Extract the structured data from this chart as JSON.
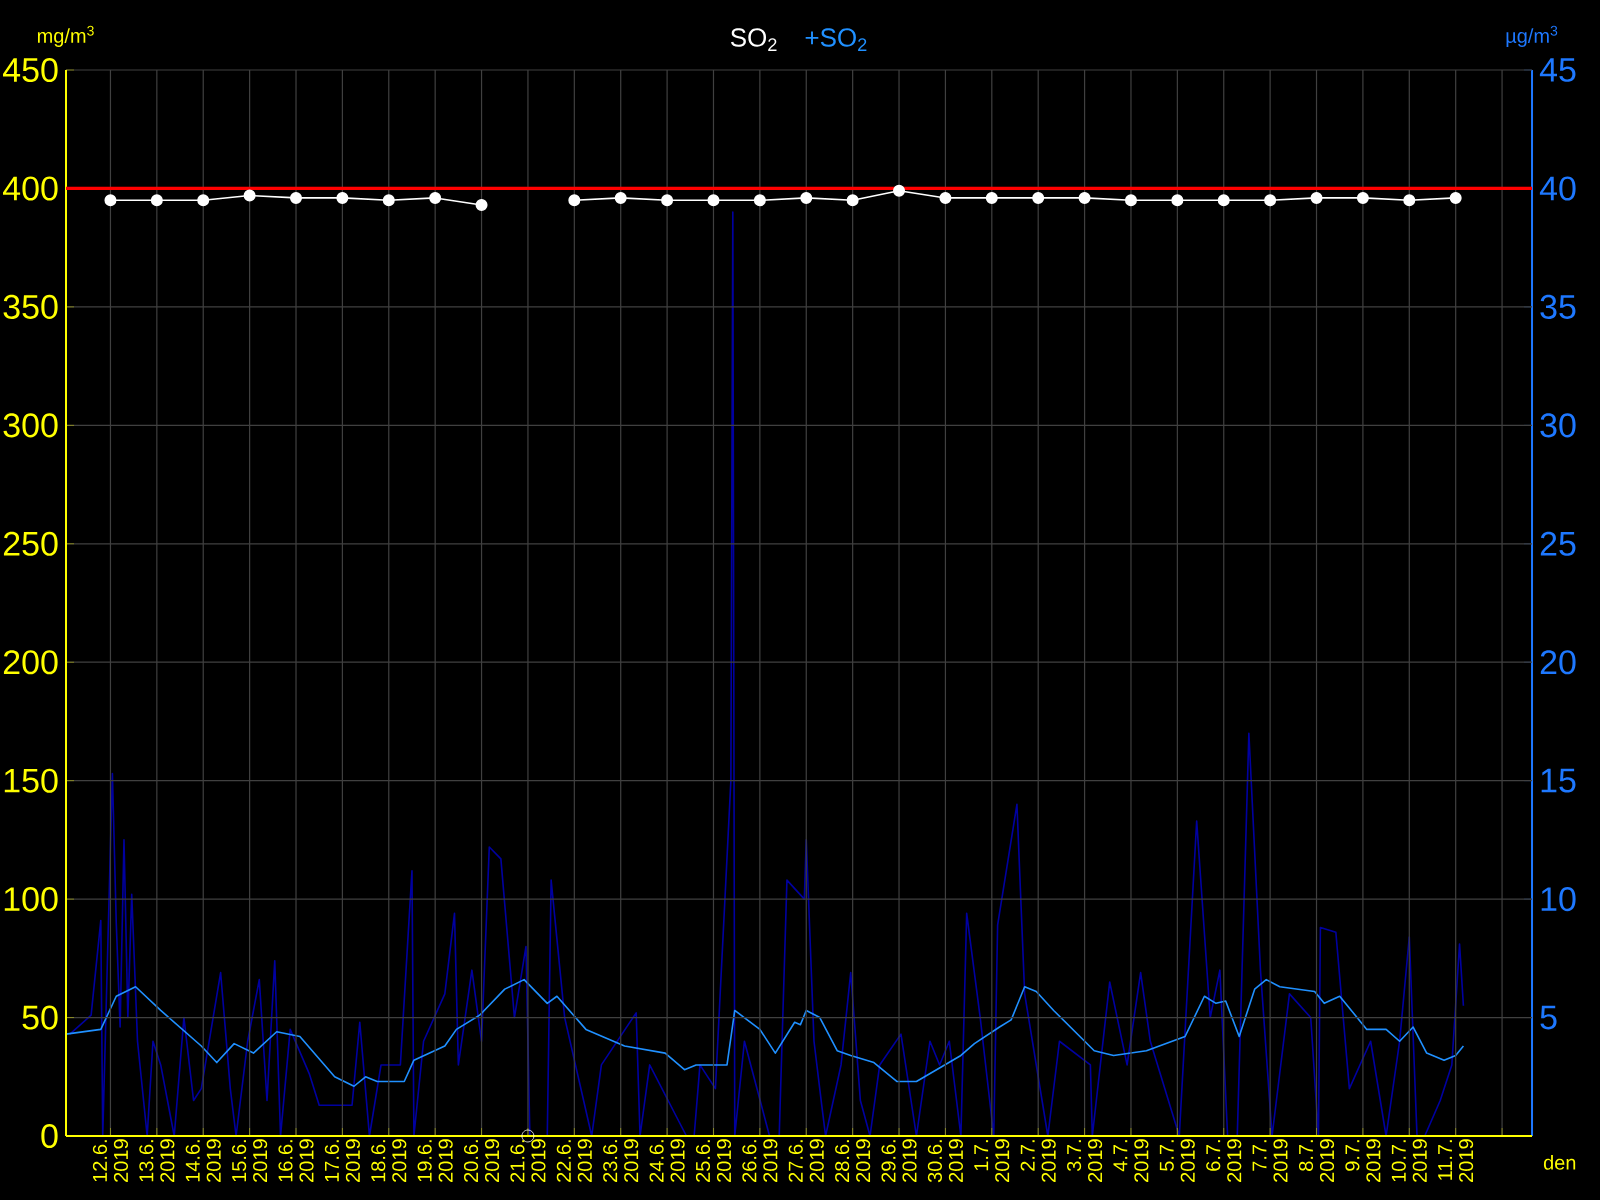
{
  "chart_data": {
    "type": "line",
    "xlabel": "den",
    "ylabel": "mg/m$^{3}$",
    "y2label": "µg/m$^{3}$",
    "legend": "top",
    "grid": true,
    "xlim": [
      "2019-06-11T01:00",
      "2019-07-12T15:30"
    ],
    "xticks": [
      {
        "value": "2019-06-12",
        "label": "12.6. 2019"
      },
      {
        "value": "2019-06-13",
        "label": "13.6. 2019"
      },
      {
        "value": "2019-06-14",
        "label": "14.6. 2019"
      },
      {
        "value": "2019-06-15",
        "label": "15.6. 2019"
      },
      {
        "value": "2019-06-16",
        "label": "16.6. 2019"
      },
      {
        "value": "2019-06-17",
        "label": "17.6. 2019"
      },
      {
        "value": "2019-06-18",
        "label": "18.6. 2019"
      },
      {
        "value": "2019-06-19",
        "label": "19.6. 2019"
      },
      {
        "value": "2019-06-20",
        "label": "20.6. 2019"
      },
      {
        "value": "2019-06-21",
        "label": "21.6. 2019"
      },
      {
        "value": "2019-06-22",
        "label": "22.6. 2019"
      },
      {
        "value": "2019-06-23",
        "label": "23.6. 2019"
      },
      {
        "value": "2019-06-24",
        "label": "24.6. 2019"
      },
      {
        "value": "2019-06-25",
        "label": "25.6. 2019"
      },
      {
        "value": "2019-06-26",
        "label": "26.6. 2019"
      },
      {
        "value": "2019-06-27",
        "label": "27.6. 2019"
      },
      {
        "value": "2019-06-28",
        "label": "28.6. 2019"
      },
      {
        "value": "2019-06-29",
        "label": "29.6. 2019"
      },
      {
        "value": "2019-06-30",
        "label": "30.6. 2019"
      },
      {
        "value": "2019-07-01",
        "label": "1.7. 2019"
      },
      {
        "value": "2019-07-02",
        "label": "2.7. 2019"
      },
      {
        "value": "2019-07-03",
        "label": "3.7. 2019"
      },
      {
        "value": "2019-07-04",
        "label": "4.7. 2019"
      },
      {
        "value": "2019-07-05",
        "label": "5.7. 2019"
      },
      {
        "value": "2019-07-06",
        "label": "6.7. 2019"
      },
      {
        "value": "2019-07-07",
        "label": "7.7. 2019"
      },
      {
        "value": "2019-07-08",
        "label": "8.7. 2019"
      },
      {
        "value": "2019-07-09",
        "label": "9.7. 2019"
      },
      {
        "value": "2019-07-10",
        "label": "10.7. 2019"
      },
      {
        "value": "2019-07-11",
        "label": "11.7. 2019"
      },
      {
        "value": "2019-07-12",
        "label": null
      }
    ],
    "ylim": [
      0,
      450
    ],
    "yticks": [
      0,
      50,
      100,
      150,
      200,
      250,
      300,
      350,
      400,
      450
    ],
    "y2lim": [
      0,
      45
    ],
    "y2ticks": [
      5,
      10,
      15,
      20,
      25,
      30,
      35,
      40,
      45
    ],
    "ref_lines": [
      {
        "axis": "y",
        "value": 400,
        "color": "#ff0000"
      }
    ],
    "series": [
      {
        "axis": "y2",
        "color": "#0000a0",
        "x": [
          "2019-06-11T03:00",
          "2019-06-11T14:00",
          "2019-06-11T19:00",
          "2019-06-11T20:00",
          "2019-06-12T01:00",
          "2019-06-12T03:00",
          "2019-06-12T05:00",
          "2019-06-12T07:00",
          "2019-06-12T09:00",
          "2019-06-12T11:00",
          "2019-06-12T14:00",
          "2019-06-12T19:00",
          "2019-06-12T22:00",
          "2019-06-13T02:00",
          "2019-06-13T09:00",
          "2019-06-13T14:00",
          "2019-06-13T19:00",
          "2019-06-13T23:00",
          "2019-06-14T09:00",
          "2019-06-14T14:00",
          "2019-06-14T17:00",
          "2019-06-14T23:00",
          "2019-06-15T05:00",
          "2019-06-15T09:00",
          "2019-06-15T13:00",
          "2019-06-15T16:00",
          "2019-06-15T21:00",
          "2019-06-16T07:00",
          "2019-06-16T12:00",
          "2019-06-16T18:00",
          "2019-06-17T05:00",
          "2019-06-17T09:00",
          "2019-06-17T14:00",
          "2019-06-17T20:00",
          "2019-06-18T06:00",
          "2019-06-18T12:00",
          "2019-06-18T13:00",
          "2019-06-18T18:00",
          "2019-06-19T05:00",
          "2019-06-19T10:00",
          "2019-06-19T12:00",
          "2019-06-19T19:00",
          "2019-06-20T00:00",
          "2019-06-20T04:00",
          "2019-06-20T10:00",
          "2019-06-20T17:00",
          "2019-06-20T23:00",
          "2019-06-21T01:00",
          "2019-06-21T10:00",
          "2019-06-21T12:00",
          "2019-06-21T19:00",
          "2019-06-22T09:00",
          "2019-06-22T14:00",
          "2019-06-23T08:00",
          "2019-06-23T10:00",
          "2019-06-23T15:00",
          "2019-06-24T10:00",
          "2019-06-24T14:00",
          "2019-06-24T17:00",
          "2019-06-25T01:00",
          "2019-06-25T09:00",
          "2019-06-25T10:00",
          "2019-06-25T11:00",
          "2019-06-25T16:00",
          "2019-06-26T05:00",
          "2019-06-26T10:00",
          "2019-06-26T14:00",
          "2019-06-26T23:00",
          "2019-06-27T00:00",
          "2019-06-27T04:00",
          "2019-06-27T08:00",
          "2019-06-27T10:00",
          "2019-06-27T18:00",
          "2019-06-27T23:00",
          "2019-06-28T04:00",
          "2019-06-28T09:00",
          "2019-06-28T14:00",
          "2019-06-29T01:00",
          "2019-06-29T09:00",
          "2019-06-29T16:00",
          "2019-06-29T21:00",
          "2019-06-30T02:00",
          "2019-06-30T08:00",
          "2019-06-30T11:00",
          "2019-06-30T18:00",
          "2019-07-01T01:00",
          "2019-07-01T03:00",
          "2019-07-01T13:00",
          "2019-07-01T17:00",
          "2019-07-02T05:00",
          "2019-07-02T11:00",
          "2019-07-03T03:00",
          "2019-07-03T04:00",
          "2019-07-03T13:00",
          "2019-07-03T22:00",
          "2019-07-04T05:00",
          "2019-07-04T10:00",
          "2019-07-05T01:00",
          "2019-07-05T10:00",
          "2019-07-05T17:00",
          "2019-07-05T22:00",
          "2019-07-06T02:00",
          "2019-07-06T07:00",
          "2019-07-06T13:00",
          "2019-07-06T19:00",
          "2019-07-07T01:00",
          "2019-07-07T10:00",
          "2019-07-07T21:00",
          "2019-07-08T01:00",
          "2019-07-08T02:00",
          "2019-07-08T10:00",
          "2019-07-08T17:00",
          "2019-07-09T04:00",
          "2019-07-09T12:00",
          "2019-07-09T19:00",
          "2019-07-10T00:00",
          "2019-07-10T04:00",
          "2019-07-10T08:00",
          "2019-07-10T16:00",
          "2019-07-10T22:00",
          "2019-07-11T02:00",
          "2019-07-11T04:00"
        ],
        "values": [
          4.3,
          5.1,
          9.1,
          0,
          15.3,
          9,
          4.6,
          12.5,
          5,
          10.2,
          4,
          0,
          4,
          3,
          0,
          5,
          1.5,
          2,
          6.9,
          2,
          0,
          4,
          6.6,
          1.5,
          7.4,
          0,
          4.5,
          2.6,
          1.3,
          1.3,
          1.3,
          4.8,
          0,
          3,
          3,
          11.2,
          0,
          4,
          6,
          9.4,
          3,
          7,
          4,
          12.2,
          11.7,
          5,
          8,
          0,
          0,
          10.8,
          5,
          0,
          3,
          5.2,
          0,
          3,
          0,
          0,
          3,
          2,
          15,
          39,
          0,
          4,
          0,
          0,
          10.8,
          10,
          12.5,
          4,
          1.3,
          0,
          3,
          6.9,
          1.5,
          0,
          3,
          4.3,
          0,
          4,
          3,
          4,
          0,
          9.4,
          5,
          0,
          8.9,
          14,
          6,
          0,
          4,
          3,
          0,
          6.5,
          3,
          6.9,
          4,
          0,
          13.3,
          5,
          7,
          0,
          0,
          17,
          7,
          0,
          6,
          5,
          0,
          8.8,
          8.6,
          2,
          4,
          0,
          4,
          8.4,
          0,
          0,
          1.5,
          3,
          8.1,
          5.5
        ]
      },
      {
        "axis": "y2",
        "name": "+SO$_{2}$",
        "color": "#2090ff",
        "x": [
          "2019-06-11T01:00",
          "2019-06-11T19:00",
          "2019-06-12T03:00",
          "2019-06-12T13:00",
          "2019-06-13T02:00",
          "2019-06-13T23:00",
          "2019-06-14T07:00",
          "2019-06-14T16:00",
          "2019-06-15T02:00",
          "2019-06-15T14:00",
          "2019-06-16T02:00",
          "2019-06-16T20:00",
          "2019-06-17T06:00",
          "2019-06-17T12:00",
          "2019-06-17T18:00",
          "2019-06-18T08:00",
          "2019-06-18T13:00",
          "2019-06-19T05:00",
          "2019-06-19T11:00",
          "2019-06-19T23:00",
          "2019-06-20T12:00",
          "2019-06-20T22:00",
          "2019-06-21T10:00",
          "2019-06-21T15:00",
          "2019-06-22T06:00",
          "2019-06-23T02:00",
          "2019-06-23T23:00",
          "2019-06-24T09:00",
          "2019-06-24T15:00",
          "2019-06-25T07:00",
          "2019-06-25T11:00",
          "2019-06-26T00:00",
          "2019-06-26T08:00",
          "2019-06-26T18:00",
          "2019-06-26T21:00",
          "2019-06-27T00:00",
          "2019-06-27T07:00",
          "2019-06-27T16:00",
          "2019-06-27T23:00",
          "2019-06-28T11:00",
          "2019-06-28T23:00",
          "2019-06-29T09:00",
          "2019-06-30T08:00",
          "2019-06-30T15:00",
          "2019-07-01T04:00",
          "2019-07-01T10:00",
          "2019-07-01T17:00",
          "2019-07-01T23:00",
          "2019-07-02T08:00",
          "2019-07-03T05:00",
          "2019-07-03T15:00",
          "2019-07-04T08:00",
          "2019-07-05T04:00",
          "2019-07-05T14:00",
          "2019-07-05T20:00",
          "2019-07-06T01:00",
          "2019-07-06T08:00",
          "2019-07-06T16:00",
          "2019-07-06T22:00",
          "2019-07-07T05:00",
          "2019-07-07T23:00",
          "2019-07-08T04:00",
          "2019-07-08T12:00",
          "2019-07-09T02:00",
          "2019-07-09T12:00",
          "2019-07-09T19:00",
          "2019-07-10T02:00",
          "2019-07-10T09:00",
          "2019-07-10T18:00",
          "2019-07-11T00:00",
          "2019-07-11T04:00"
        ],
        "values": [
          4.3,
          4.5,
          5.9,
          6.3,
          5.3,
          3.8,
          3.1,
          3.9,
          3.5,
          4.4,
          4.2,
          2.5,
          2.1,
          2.5,
          2.3,
          2.3,
          3.2,
          3.8,
          4.5,
          5.1,
          6.2,
          6.6,
          5.6,
          5.9,
          4.5,
          3.8,
          3.5,
          2.8,
          3.0,
          3.0,
          5.3,
          4.5,
          3.5,
          4.8,
          4.7,
          5.3,
          5.0,
          3.6,
          3.4,
          3.1,
          2.3,
          2.3,
          3.4,
          3.9,
          4.6,
          4.9,
          6.3,
          6.1,
          5.3,
          3.6,
          3.4,
          3.6,
          4.2,
          5.9,
          5.6,
          5.7,
          4.2,
          6.2,
          6.6,
          6.3,
          6.1,
          5.6,
          5.9,
          4.5,
          4.5,
          4.0,
          4.6,
          3.5,
          3.2,
          3.4,
          3.8
        ]
      },
      {
        "axis": "y",
        "name": "SO$_{2}$",
        "color": "#ffffff",
        "marker": "circle",
        "x": [
          "2019-06-12",
          "2019-06-13",
          "2019-06-14",
          "2019-06-15",
          "2019-06-16",
          "2019-06-17",
          "2019-06-18",
          "2019-06-19",
          "2019-06-20",
          "2019-06-21",
          "2019-06-22",
          "2019-06-23",
          "2019-06-24",
          "2019-06-25",
          "2019-06-26",
          "2019-06-27",
          "2019-06-28",
          "2019-06-29",
          "2019-06-30",
          "2019-07-01",
          "2019-07-02",
          "2019-07-03",
          "2019-07-04",
          "2019-07-05",
          "2019-07-06",
          "2019-07-07",
          "2019-07-08",
          "2019-07-09",
          "2019-07-10",
          "2019-07-11"
        ],
        "values": [
          395,
          395,
          395,
          397,
          396,
          396,
          395,
          396,
          393,
          null,
          395,
          396,
          395,
          395,
          395,
          396,
          395,
          399,
          396,
          396,
          396,
          396,
          395,
          395,
          395,
          395,
          396,
          396,
          395,
          396
        ]
      },
      {
        "type": "scatter",
        "axis": "y",
        "color": "#ffffff",
        "marker": "circle",
        "x": [
          "2019-06-21"
        ],
        "values": [
          0
        ]
      }
    ]
  }
}
